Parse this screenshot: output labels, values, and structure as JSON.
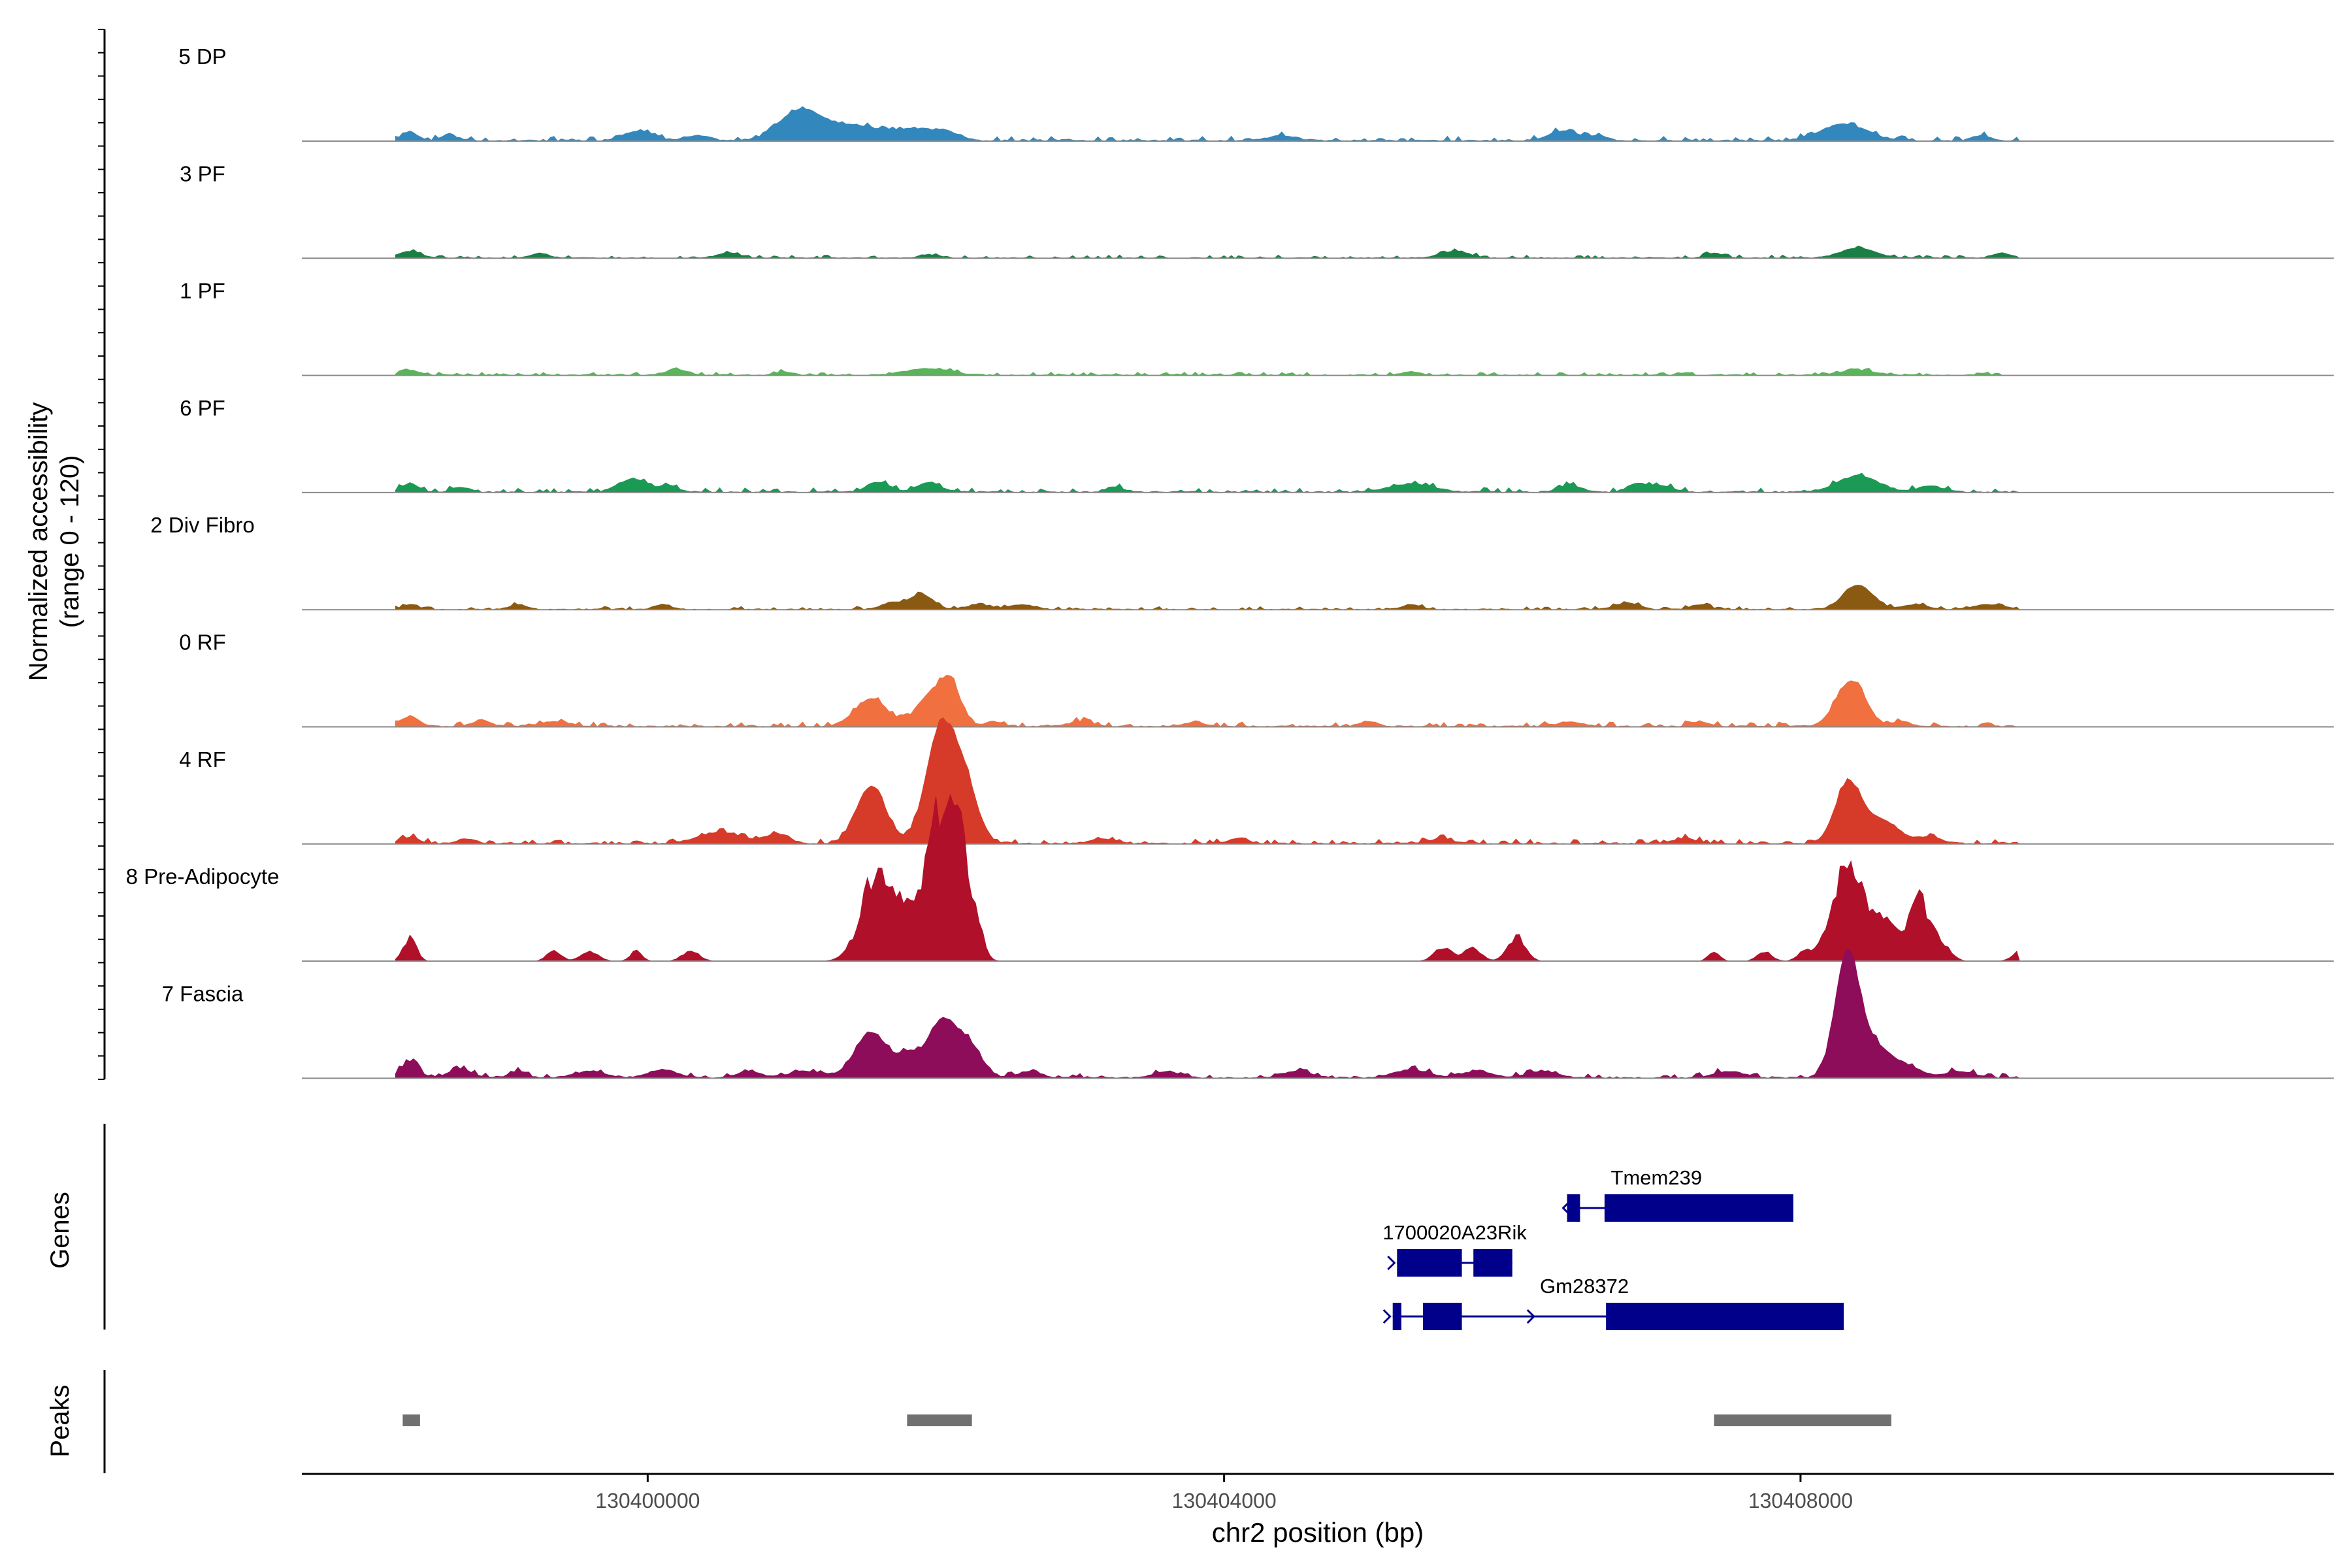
{
  "chart_data": {
    "type": "area",
    "title": "",
    "y_axis": {
      "label_line1": "Normalized accessibility",
      "label_line2": "(range 0 - 120)",
      "range": [
        0,
        120
      ]
    },
    "x_axis": {
      "label": "chr2 position (bp)",
      "range": [
        130397600,
        130411700
      ],
      "ticks": [
        {
          "value": 130400000,
          "label": "130400000"
        },
        {
          "value": 130404000,
          "label": "130404000"
        },
        {
          "value": 130408000,
          "label": "130408000"
        }
      ]
    },
    "region": {
      "start": 130398250,
      "end": 130409520
    },
    "tracks": [
      {
        "name": "5 DP",
        "color": "#3288bd",
        "noise": 3,
        "peaks": [
          [
            130398350,
            5,
            60
          ],
          [
            130398620,
            4,
            50
          ],
          [
            130399930,
            6,
            100
          ],
          [
            130400350,
            3,
            80
          ],
          [
            130401050,
            16,
            140
          ],
          [
            130401400,
            9,
            250
          ],
          [
            130401900,
            6,
            150
          ],
          [
            130402100,
            3,
            80
          ],
          [
            130404400,
            3,
            100
          ],
          [
            130406350,
            6,
            100
          ],
          [
            130406600,
            3,
            60
          ],
          [
            130408300,
            10,
            160
          ],
          [
            130409250,
            3,
            60
          ]
        ]
      },
      {
        "name": "3 PF",
        "color": "#1a7f45",
        "noise": 2,
        "peaks": [
          [
            130398350,
            4,
            80
          ],
          [
            130399250,
            3,
            60
          ],
          [
            130400560,
            3,
            80
          ],
          [
            130401950,
            2,
            60
          ],
          [
            130405600,
            4,
            100
          ],
          [
            130407400,
            3,
            60
          ],
          [
            130408400,
            6,
            120
          ],
          [
            130409400,
            3,
            60
          ]
        ]
      },
      {
        "name": "1 PF",
        "color": "#5ab45a",
        "noise": 2,
        "peaks": [
          [
            130398350,
            3,
            60
          ],
          [
            130400200,
            3,
            80
          ],
          [
            130400950,
            2,
            60
          ],
          [
            130401950,
            4,
            150
          ],
          [
            130405300,
            2,
            60
          ],
          [
            130408400,
            3,
            120
          ],
          [
            130409950,
            4,
            60
          ]
        ]
      },
      {
        "name": "6 PF",
        "color": "#1a9a55",
        "noise": 3,
        "peaks": [
          [
            130398350,
            5,
            60
          ],
          [
            130398700,
            3,
            60
          ],
          [
            130399900,
            8,
            100
          ],
          [
            130400150,
            4,
            60
          ],
          [
            130401600,
            6,
            80
          ],
          [
            130401950,
            6,
            80
          ],
          [
            130403250,
            3,
            60
          ],
          [
            130405300,
            5,
            150
          ],
          [
            130406400,
            4,
            80
          ],
          [
            130406850,
            4,
            60
          ],
          [
            130407000,
            4,
            100
          ],
          [
            130408400,
            10,
            140
          ],
          [
            130408900,
            4,
            80
          ],
          [
            130409700,
            3,
            100
          ]
        ]
      },
      {
        "name": "2 Div Fibro",
        "color": "#8b5a12",
        "noise": 2,
        "peaks": [
          [
            130398350,
            3,
            50
          ],
          [
            130399100,
            3,
            60
          ],
          [
            130400100,
            3,
            50
          ],
          [
            130401700,
            4,
            80
          ],
          [
            130401900,
            9,
            80
          ],
          [
            130402300,
            3,
            80
          ],
          [
            130402600,
            3,
            80
          ],
          [
            130405300,
            3,
            60
          ],
          [
            130406800,
            4,
            80
          ],
          [
            130407300,
            3,
            60
          ],
          [
            130408400,
            15,
            100
          ],
          [
            130408800,
            3,
            80
          ],
          [
            130409300,
            3,
            100
          ],
          [
            130409600,
            3,
            60
          ]
        ]
      },
      {
        "name": "0 RF",
        "color": "#f07040",
        "noise": 3,
        "peaks": [
          [
            130398350,
            6,
            60
          ],
          [
            130398850,
            4,
            60
          ],
          [
            130399350,
            3,
            100
          ],
          [
            130401550,
            17,
            110
          ],
          [
            130401950,
            18,
            90
          ],
          [
            130402100,
            26,
            70
          ],
          [
            130402400,
            3,
            60
          ],
          [
            130403000,
            3,
            80
          ],
          [
            130403800,
            3,
            60
          ],
          [
            130405000,
            3,
            60
          ],
          [
            130406400,
            3,
            80
          ],
          [
            130407300,
            3,
            60
          ],
          [
            130408350,
            28,
            100
          ],
          [
            130408700,
            3,
            60
          ]
        ]
      },
      {
        "name": "4 RF",
        "color": "#d63a28",
        "noise": 3,
        "peaks": [
          [
            130398350,
            4,
            60
          ],
          [
            130398750,
            3,
            60
          ],
          [
            130400500,
            7,
            150
          ],
          [
            130400900,
            6,
            80
          ],
          [
            130401550,
            35,
            100
          ],
          [
            130402030,
            68,
            100
          ],
          [
            130402200,
            34,
            90
          ],
          [
            130403150,
            3,
            80
          ],
          [
            130404100,
            3,
            60
          ],
          [
            130405500,
            3,
            80
          ],
          [
            130407200,
            3,
            80
          ],
          [
            130408330,
            36,
            90
          ],
          [
            130408560,
            14,
            120
          ],
          [
            130408900,
            4,
            80
          ],
          [
            130409600,
            3,
            60
          ]
        ]
      },
      {
        "name": "8 Pre-Adipocyte",
        "color": "#b0102a",
        "noise": 0,
        "peaks": [
          [
            130398350,
            14,
            45
          ],
          [
            130399350,
            6,
            50
          ],
          [
            130399600,
            6,
            60
          ],
          [
            130399920,
            6,
            40
          ],
          [
            130400300,
            6,
            60
          ],
          [
            130401600,
            56,
            110
          ],
          [
            130401780,
            22,
            60
          ],
          [
            130402000,
            78,
            90
          ],
          [
            130402160,
            70,
            80
          ],
          [
            130402300,
            10,
            40
          ],
          [
            130405520,
            8,
            60
          ],
          [
            130405720,
            8,
            60
          ],
          [
            130406030,
            15,
            60
          ],
          [
            130407400,
            6,
            40
          ],
          [
            130407750,
            6,
            50
          ],
          [
            130408030,
            6,
            50
          ],
          [
            130408340,
            62,
            110
          ],
          [
            130408600,
            22,
            70
          ],
          [
            130408820,
            38,
            70
          ],
          [
            130408980,
            10,
            60
          ],
          [
            130409520,
            6,
            50
          ]
        ]
      },
      {
        "name": "7 Fascia",
        "color": "#8e0d5a",
        "noise": 3,
        "peaks": [
          [
            130398350,
            10,
            60
          ],
          [
            130398700,
            5,
            80
          ],
          [
            130399100,
            4,
            60
          ],
          [
            130399600,
            4,
            100
          ],
          [
            130400100,
            5,
            100
          ],
          [
            130400700,
            4,
            80
          ],
          [
            130401100,
            4,
            120
          ],
          [
            130401550,
            28,
            110
          ],
          [
            130401800,
            12,
            70
          ],
          [
            130402050,
            36,
            110
          ],
          [
            130402250,
            15,
            80
          ],
          [
            130402650,
            4,
            80
          ],
          [
            130403600,
            4,
            80
          ],
          [
            130404500,
            4,
            100
          ],
          [
            130405300,
            5,
            120
          ],
          [
            130405750,
            4,
            100
          ],
          [
            130406200,
            4,
            100
          ],
          [
            130407500,
            4,
            100
          ],
          [
            130408320,
            66,
            80
          ],
          [
            130408470,
            22,
            140
          ],
          [
            130408750,
            5,
            100
          ],
          [
            130409100,
            4,
            100
          ],
          [
            130409700,
            4,
            100
          ]
        ]
      }
    ],
    "genes_panel": {
      "label": "Genes",
      "color": "#00008b",
      "genes": [
        {
          "name": "Tmem239",
          "start": 130406380,
          "end": 130407950,
          "strand": "-",
          "row": 0,
          "exons": [
            [
              130406380,
              130406470,
              "thick"
            ],
            [
              130406640,
              130407950,
              "thick"
            ]
          ]
        },
        {
          "name": "1700020A23Rik",
          "start": 130405200,
          "end": 130406000,
          "strand": "+",
          "row": 1,
          "exons": [
            [
              130405200,
              130405650,
              "thick"
            ],
            [
              130405730,
              130406000,
              "thick"
            ]
          ]
        },
        {
          "name": "Gm28372",
          "start": 130405170,
          "end": 130408300,
          "strand": "+",
          "row": 2,
          "exons": [
            [
              130405170,
              130405230,
              "thick"
            ],
            [
              130405380,
              130405650,
              "thick"
            ],
            [
              130406650,
              130408300,
              "thick"
            ]
          ]
        }
      ]
    },
    "peaks_panel": {
      "label": "Peaks",
      "color": "#707070",
      "regions": [
        [
          130398300,
          130398420
        ],
        [
          130401800,
          130402250
        ],
        [
          130407400,
          130408630
        ]
      ]
    }
  }
}
